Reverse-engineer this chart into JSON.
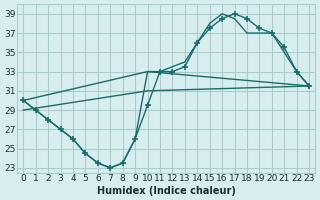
{
  "xlabel": "Humidex (Indice chaleur)",
  "ylabel": "",
  "background_color": "#d8eeee",
  "grid_color": "#aacccc",
  "line_color": "#1a6b6b",
  "xlim": [
    -0.5,
    23.5
  ],
  "ylim": [
    22.5,
    40
  ],
  "xticks": [
    0,
    1,
    2,
    3,
    4,
    5,
    6,
    7,
    8,
    9,
    10,
    11,
    12,
    13,
    14,
    15,
    16,
    17,
    18,
    19,
    20,
    21,
    22,
    23
  ],
  "yticks": [
    23,
    25,
    27,
    29,
    31,
    33,
    35,
    37,
    39
  ],
  "curve1_x": [
    0,
    1,
    2,
    3,
    4,
    5,
    6,
    7,
    8,
    9,
    10,
    11,
    12,
    13,
    14,
    15,
    16,
    17,
    18,
    19,
    20,
    21,
    22,
    23
  ],
  "curve1_y": [
    30,
    29,
    28,
    27,
    26,
    24.5,
    23.5,
    23,
    23.5,
    26,
    29.5,
    33,
    33,
    33.5,
    36,
    37.5,
    38.5,
    39,
    38.5,
    37.5,
    37,
    35.5,
    33,
    31.5
  ],
  "curve2_x": [
    0,
    1,
    2,
    3,
    4,
    5,
    6,
    7,
    8,
    9,
    10,
    11,
    12,
    13,
    14,
    15,
    16,
    17,
    18,
    19,
    20,
    21,
    22,
    23
  ],
  "curve2_y": [
    30,
    29,
    28,
    27,
    26,
    24.5,
    23.5,
    23,
    23.5,
    26,
    33,
    33,
    33.5,
    34,
    36,
    38,
    39,
    38.5,
    37,
    37,
    37,
    35,
    33,
    31.5
  ],
  "curve3_x": [
    0,
    10,
    23
  ],
  "curve3_y": [
    29,
    31,
    31.5
  ],
  "curve4_x": [
    0,
    10,
    23
  ],
  "curve4_y": [
    30,
    33,
    31.5
  ]
}
